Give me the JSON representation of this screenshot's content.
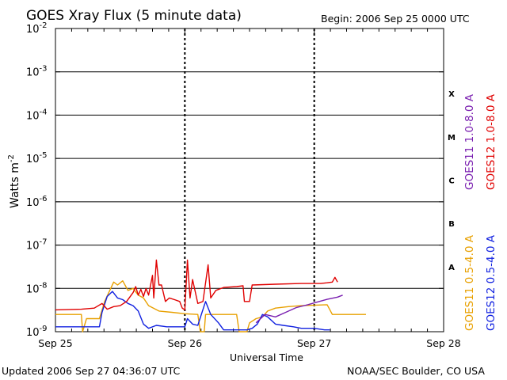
{
  "title": "GOES Xray Flux (5 minute data)",
  "begin_label": "Begin:  2006 Sep 25 0000 UTC",
  "updated_label": "Updated 2006 Sep 27 04:36:07 UTC",
  "credit_label": "NOAA/SEC Boulder, CO USA",
  "colors": {
    "goes11_long": "#7a1fb0",
    "goes12_long": "#e00000",
    "goes11_short": "#e8a000",
    "goes12_short": "#1020e0",
    "grid": "#000000"
  },
  "chart_data": {
    "type": "line",
    "title": "GOES Xray Flux (5 minute data)",
    "xlabel": "Universal Time",
    "ylabel_base": "Watts m",
    "ylabel_exp": "-2",
    "yscale": "log",
    "xlim": [
      "2006-09-25T00:00",
      "2006-09-28T00:00"
    ],
    "ylim": [
      1e-09,
      0.01
    ],
    "x_ticks": [
      "Sep 25",
      "Sep 26",
      "Sep 27",
      "Sep 28"
    ],
    "y_ticks": [
      {
        "base": "10",
        "exp": "-2"
      },
      {
        "base": "10",
        "exp": "-3"
      },
      {
        "base": "10",
        "exp": "-4"
      },
      {
        "base": "10",
        "exp": "-5"
      },
      {
        "base": "10",
        "exp": "-6"
      },
      {
        "base": "10",
        "exp": "-7"
      },
      {
        "base": "10",
        "exp": "-8"
      },
      {
        "base": "10",
        "exp": "-9"
      }
    ],
    "flare_classes": [
      "X",
      "M",
      "C",
      "B",
      "A"
    ],
    "grid": "horizontal at each decade; dashed vertical at day boundaries",
    "legend_placement": "right, vertical",
    "series": [
      {
        "name": "GOES11 1.0-8.0 A",
        "points": [
          [
            1.55,
            1.6e-09
          ],
          [
            1.62,
            2.5e-09
          ],
          [
            1.7,
            2.2e-09
          ],
          [
            1.78,
            2.8e-09
          ],
          [
            1.86,
            3.6e-09
          ],
          [
            1.95,
            4.2e-09
          ],
          [
            2.02,
            4.8e-09
          ],
          [
            2.1,
            5.6e-09
          ],
          [
            2.18,
            6.3e-09
          ],
          [
            2.22,
            7e-09
          ]
        ]
      },
      {
        "name": "GOES12 1.0-8.0 A",
        "points": [
          [
            0.0,
            3.2e-09
          ],
          [
            0.2,
            3.3e-09
          ],
          [
            0.3,
            3.5e-09
          ],
          [
            0.36,
            4.5e-09
          ],
          [
            0.4,
            3.3e-09
          ],
          [
            0.45,
            3.8e-09
          ],
          [
            0.5,
            4e-09
          ],
          [
            0.55,
            5e-09
          ],
          [
            0.6,
            8e-09
          ],
          [
            0.62,
            1.1e-08
          ],
          [
            0.64,
            7e-09
          ],
          [
            0.66,
            9.5e-09
          ],
          [
            0.68,
            6.5e-09
          ],
          [
            0.7,
            1e-08
          ],
          [
            0.72,
            7e-09
          ],
          [
            0.75,
            2e-08
          ],
          [
            0.76,
            6e-09
          ],
          [
            0.78,
            4.5e-08
          ],
          [
            0.8,
            1.2e-08
          ],
          [
            0.82,
            1.2e-08
          ],
          [
            0.85,
            5e-09
          ],
          [
            0.88,
            6e-09
          ],
          [
            0.92,
            5.5e-09
          ],
          [
            0.96,
            5e-09
          ],
          [
            0.98,
            3.5e-09
          ],
          [
            1.0,
            3.2e-09
          ],
          [
            1.02,
            4.5e-08
          ],
          [
            1.04,
            6e-09
          ],
          [
            1.06,
            1.6e-08
          ],
          [
            1.1,
            4.5e-09
          ],
          [
            1.14,
            5e-09
          ],
          [
            1.18,
            3.5e-08
          ],
          [
            1.2,
            6e-09
          ],
          [
            1.24,
            9e-09
          ],
          [
            1.3,
            1.05e-08
          ],
          [
            1.4,
            1.1e-08
          ],
          [
            1.45,
            1.15e-08
          ],
          [
            1.46,
            5e-09
          ],
          [
            1.5,
            5e-09
          ],
          [
            1.52,
            1.2e-08
          ],
          [
            1.7,
            1.25e-08
          ],
          [
            1.9,
            1.3e-08
          ],
          [
            2.05,
            1.3e-08
          ],
          [
            2.1,
            1.35e-08
          ],
          [
            2.14,
            1.4e-08
          ],
          [
            2.16,
            1.8e-08
          ],
          [
            2.18,
            1.4e-08
          ]
        ]
      },
      {
        "name": "GOES11 0.5-4.0 A",
        "points": [
          [
            0.0,
            2.5e-09
          ],
          [
            0.2,
            2.5e-09
          ],
          [
            0.21,
            1e-09
          ],
          [
            0.24,
            2e-09
          ],
          [
            0.34,
            2e-09
          ],
          [
            0.38,
            5e-09
          ],
          [
            0.42,
            9e-09
          ],
          [
            0.45,
            1.4e-08
          ],
          [
            0.48,
            1.2e-08
          ],
          [
            0.52,
            1.5e-08
          ],
          [
            0.56,
            9e-09
          ],
          [
            0.6,
            1e-08
          ],
          [
            0.64,
            7e-09
          ],
          [
            0.68,
            6e-09
          ],
          [
            0.72,
            4e-09
          ],
          [
            0.8,
            3e-09
          ],
          [
            0.9,
            2.8e-09
          ],
          [
            1.0,
            2.6e-09
          ],
          [
            1.1,
            2.5e-09
          ],
          [
            1.12,
            1e-09
          ],
          [
            1.15,
            1e-09
          ],
          [
            1.16,
            2.5e-09
          ],
          [
            1.4,
            2.5e-09
          ],
          [
            1.42,
            1e-09
          ],
          [
            1.48,
            1e-09
          ],
          [
            1.5,
            1.6e-09
          ],
          [
            1.55,
            2e-09
          ],
          [
            1.6,
            2.2e-09
          ],
          [
            1.64,
            3e-09
          ],
          [
            1.7,
            3.5e-09
          ],
          [
            1.8,
            3.8e-09
          ],
          [
            1.9,
            4e-09
          ],
          [
            2.1,
            4.2e-09
          ],
          [
            2.14,
            2.5e-09
          ],
          [
            2.4,
            2.5e-09
          ]
        ]
      },
      {
        "name": "GOES12 0.5-4.0 A",
        "points": [
          [
            0.0,
            1.3e-09
          ],
          [
            0.3,
            1.3e-09
          ],
          [
            0.34,
            1.3e-09
          ],
          [
            0.36,
            2.8e-09
          ],
          [
            0.4,
            6.5e-09
          ],
          [
            0.44,
            8.5e-09
          ],
          [
            0.48,
            6e-09
          ],
          [
            0.52,
            5.5e-09
          ],
          [
            0.56,
            4.5e-09
          ],
          [
            0.6,
            4e-09
          ],
          [
            0.64,
            3e-09
          ],
          [
            0.68,
            1.5e-09
          ],
          [
            0.72,
            1.2e-09
          ],
          [
            0.78,
            1.4e-09
          ],
          [
            0.86,
            1.3e-09
          ],
          [
            0.94,
            1.3e-09
          ],
          [
            1.0,
            1.3e-09
          ],
          [
            1.02,
            2e-09
          ],
          [
            1.06,
            1.5e-09
          ],
          [
            1.1,
            1.4e-09
          ],
          [
            1.16,
            5e-09
          ],
          [
            1.2,
            2.5e-09
          ],
          [
            1.26,
            1.6e-09
          ],
          [
            1.3,
            1.1e-09
          ],
          [
            1.4,
            1.1e-09
          ],
          [
            1.48,
            1.1e-09
          ],
          [
            1.52,
            1.2e-09
          ],
          [
            1.56,
            1.5e-09
          ],
          [
            1.6,
            2.5e-09
          ],
          [
            1.64,
            2.2e-09
          ],
          [
            1.7,
            1.5e-09
          ],
          [
            1.76,
            1.4e-09
          ],
          [
            1.84,
            1.3e-09
          ],
          [
            1.9,
            1.2e-09
          ],
          [
            2.0,
            1.2e-09
          ],
          [
            2.08,
            1.1e-09
          ],
          [
            2.12,
            1.1e-09
          ]
        ]
      }
    ]
  }
}
